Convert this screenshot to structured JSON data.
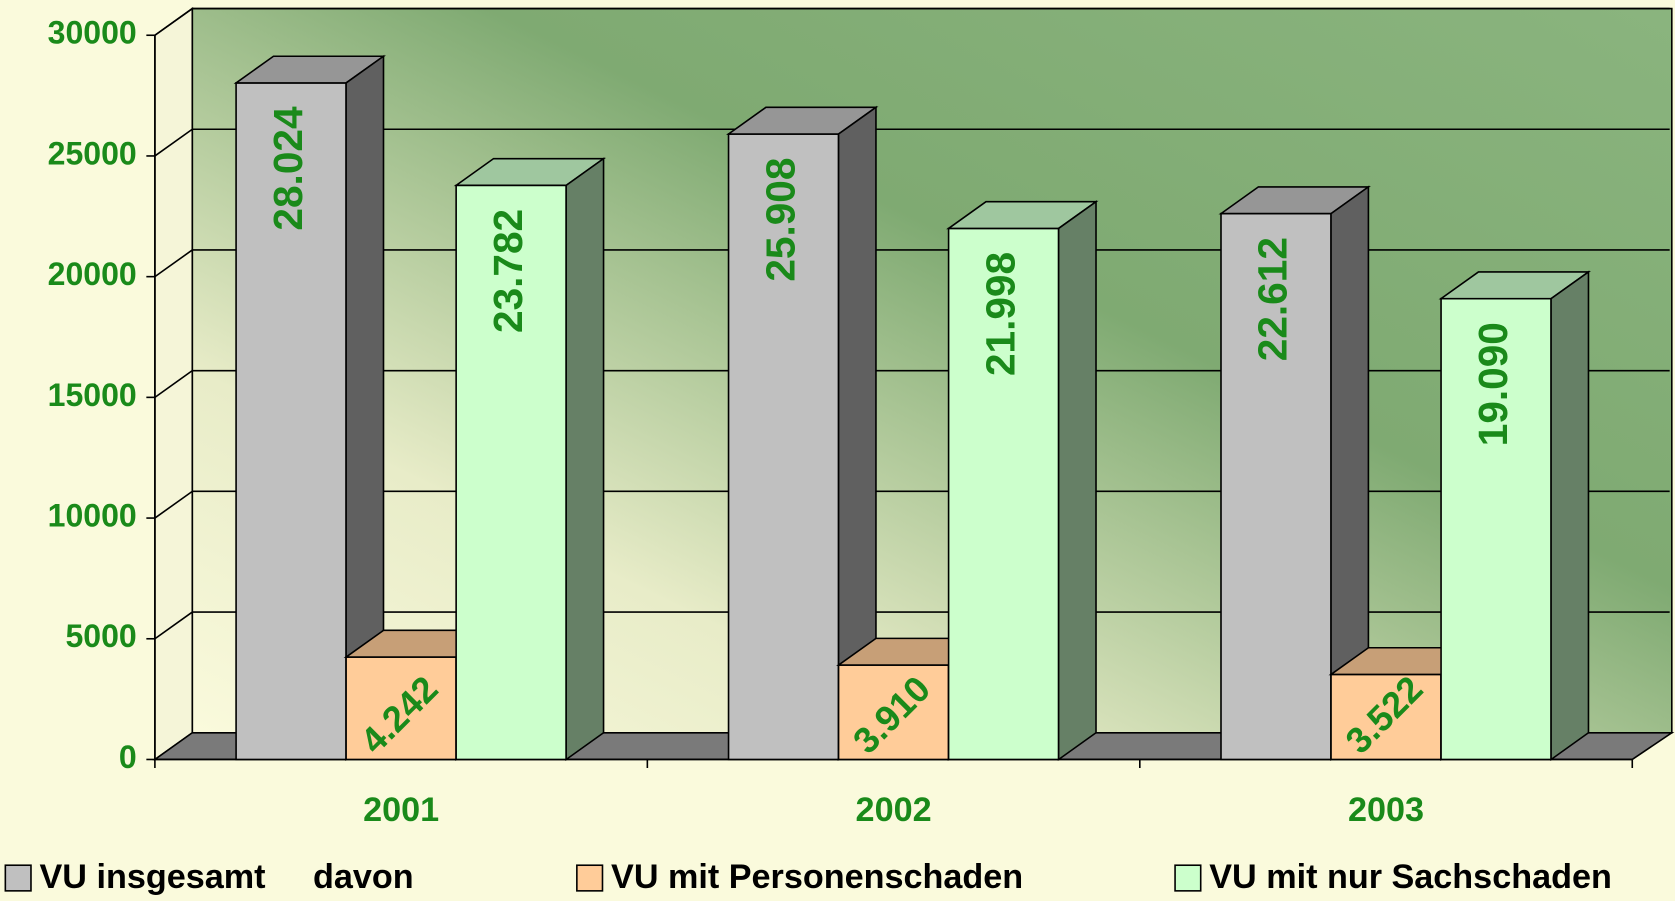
{
  "chart_data": {
    "type": "bar3d",
    "categories": [
      "2001",
      "2002",
      "2003"
    ],
    "series": [
      {
        "name": "VU insgesamt     davon",
        "color": "#c0c0c0",
        "values": [
          28024,
          25908,
          22612
        ],
        "value_labels": [
          "28.024",
          "25.908",
          "22.612"
        ]
      },
      {
        "name": "VU mit Personenschaden",
        "color": "#ffcc99",
        "values": [
          4242,
          3910,
          3522
        ],
        "value_labels": [
          "4.242",
          "3.910",
          "3.522"
        ]
      },
      {
        "name": "VU mit nur Sachschaden",
        "color": "#ccffcc",
        "values": [
          23782,
          21998,
          19090
        ],
        "value_labels": [
          "23.782",
          "21.998",
          "19.090"
        ]
      }
    ],
    "ylim": [
      0,
      30000
    ],
    "yticks": [
      0,
      5000,
      10000,
      15000,
      20000,
      25000,
      30000
    ],
    "grid": true
  }
}
